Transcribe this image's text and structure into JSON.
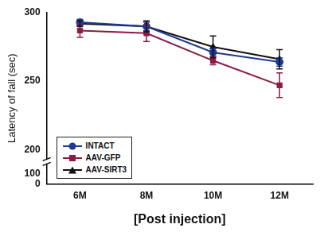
{
  "chart_data": {
    "type": "line",
    "x_label": "[Post injection]",
    "y_label": "Latency of fall (sec)",
    "categories": [
      "6M",
      "8M",
      "10M",
      "12M"
    ],
    "series": [
      {
        "name": "INTACT",
        "color": "#1f3a93",
        "marker": "circle",
        "values": [
          293,
          290,
          271,
          264
        ],
        "errors": [
          2,
          3,
          3,
          3
        ]
      },
      {
        "name": "AAV-GFP",
        "color": "#8b1a4a",
        "marker": "square",
        "values": [
          287,
          285,
          265,
          247
        ],
        "errors": [
          5,
          6,
          3,
          9
        ]
      },
      {
        "name": "AAV-SIRT3",
        "color": "#111111",
        "marker": "triangle",
        "values": [
          292,
          290,
          275,
          266
        ],
        "errors": [
          2,
          4,
          8,
          7
        ]
      }
    ],
    "ylim": [
      0,
      300
    ],
    "yticks": [
      0,
      100,
      200,
      250,
      300
    ],
    "grid": false,
    "legend": "lower left"
  }
}
